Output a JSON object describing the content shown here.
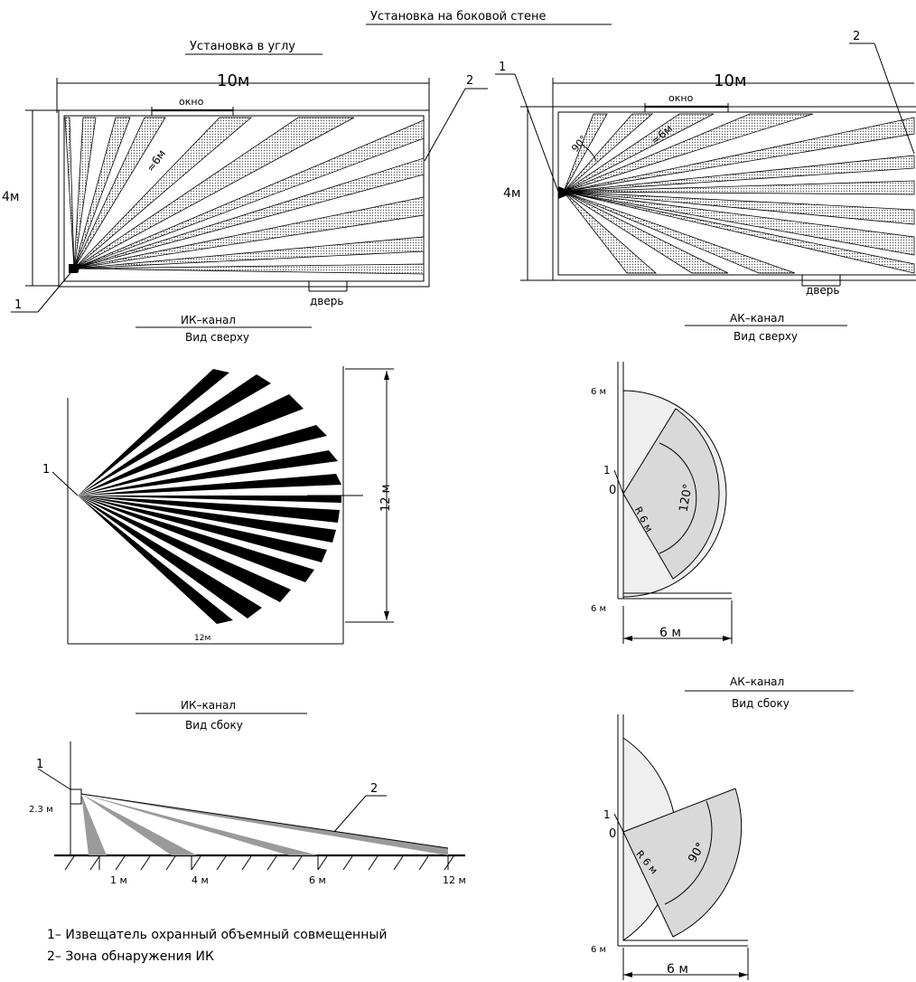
{
  "titles": {
    "side_wall": "Установка на боковой стене",
    "corner": "Установка в углу"
  },
  "dims": {
    "room_len": "10м",
    "room_width": "4м",
    "ik_top_height": "12 м",
    "ik_top_width": "12м",
    "ak_r": "R 6 м",
    "ak_top_angle": "120°",
    "ak_side_angle": "90°",
    "ak_top_bottom": "6 м",
    "ak_top_width": "6 м",
    "ak_side_bottom": "6 м",
    "ak_side_width": "6 м",
    "origin": "0",
    "range_6": "≈6м",
    "angle_90": "90°",
    "ak_top_6m": "6 м",
    "height_23": "2.3 м"
  },
  "labels": {
    "okno": "окно",
    "dver": "дверь",
    "num1": "1",
    "num2": "2"
  },
  "views": {
    "ik_top_title": "ИК–канал",
    "ik_top_sub": "Вид сверху",
    "ak_top_title": "АК–канал",
    "ak_top_sub": "Вид сверху",
    "ik_side_title": "ИК–канал",
    "ik_side_sub": "Вид сбоку",
    "ak_side_title": "АК–канал",
    "ak_side_sub": "Вид сбоку"
  },
  "ticks": [
    "1 м",
    "4 м",
    "6 м",
    "12 м"
  ],
  "legend": [
    "1– Извещатель охранный объемный совмещенный",
    "2– Зона обнаружения ИК"
  ]
}
